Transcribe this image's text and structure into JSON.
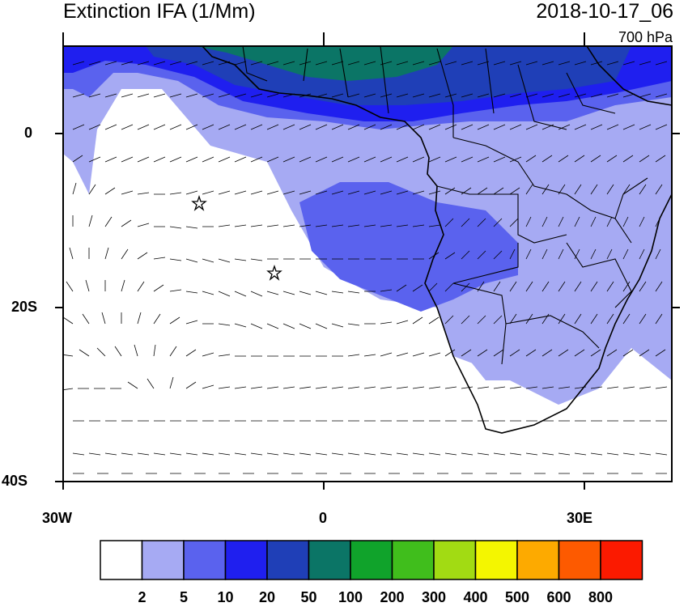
{
  "header": {
    "title": "Extinction IFA (1/Mm)",
    "datetime": "2018-10-17_06",
    "level": "700 hPa"
  },
  "axes": {
    "y_ticks": [
      "0",
      "20S",
      "40S"
    ],
    "x_ticks": [
      "30W",
      "0",
      "30E"
    ]
  },
  "colorbar": {
    "labels": [
      "2",
      "5",
      "10",
      "20",
      "50",
      "100",
      "200",
      "300",
      "400",
      "500",
      "600",
      "800"
    ],
    "colors": [
      "#ffffff",
      "#a6aaf3",
      "#5a62ee",
      "#1f1fef",
      "#1f3fb7",
      "#0b7566",
      "#10a32b",
      "#40be1c",
      "#a2db13",
      "#f4f600",
      "#fdaa00",
      "#fd5a00",
      "#fb1a00"
    ]
  },
  "markers": {
    "stars": 2
  }
}
